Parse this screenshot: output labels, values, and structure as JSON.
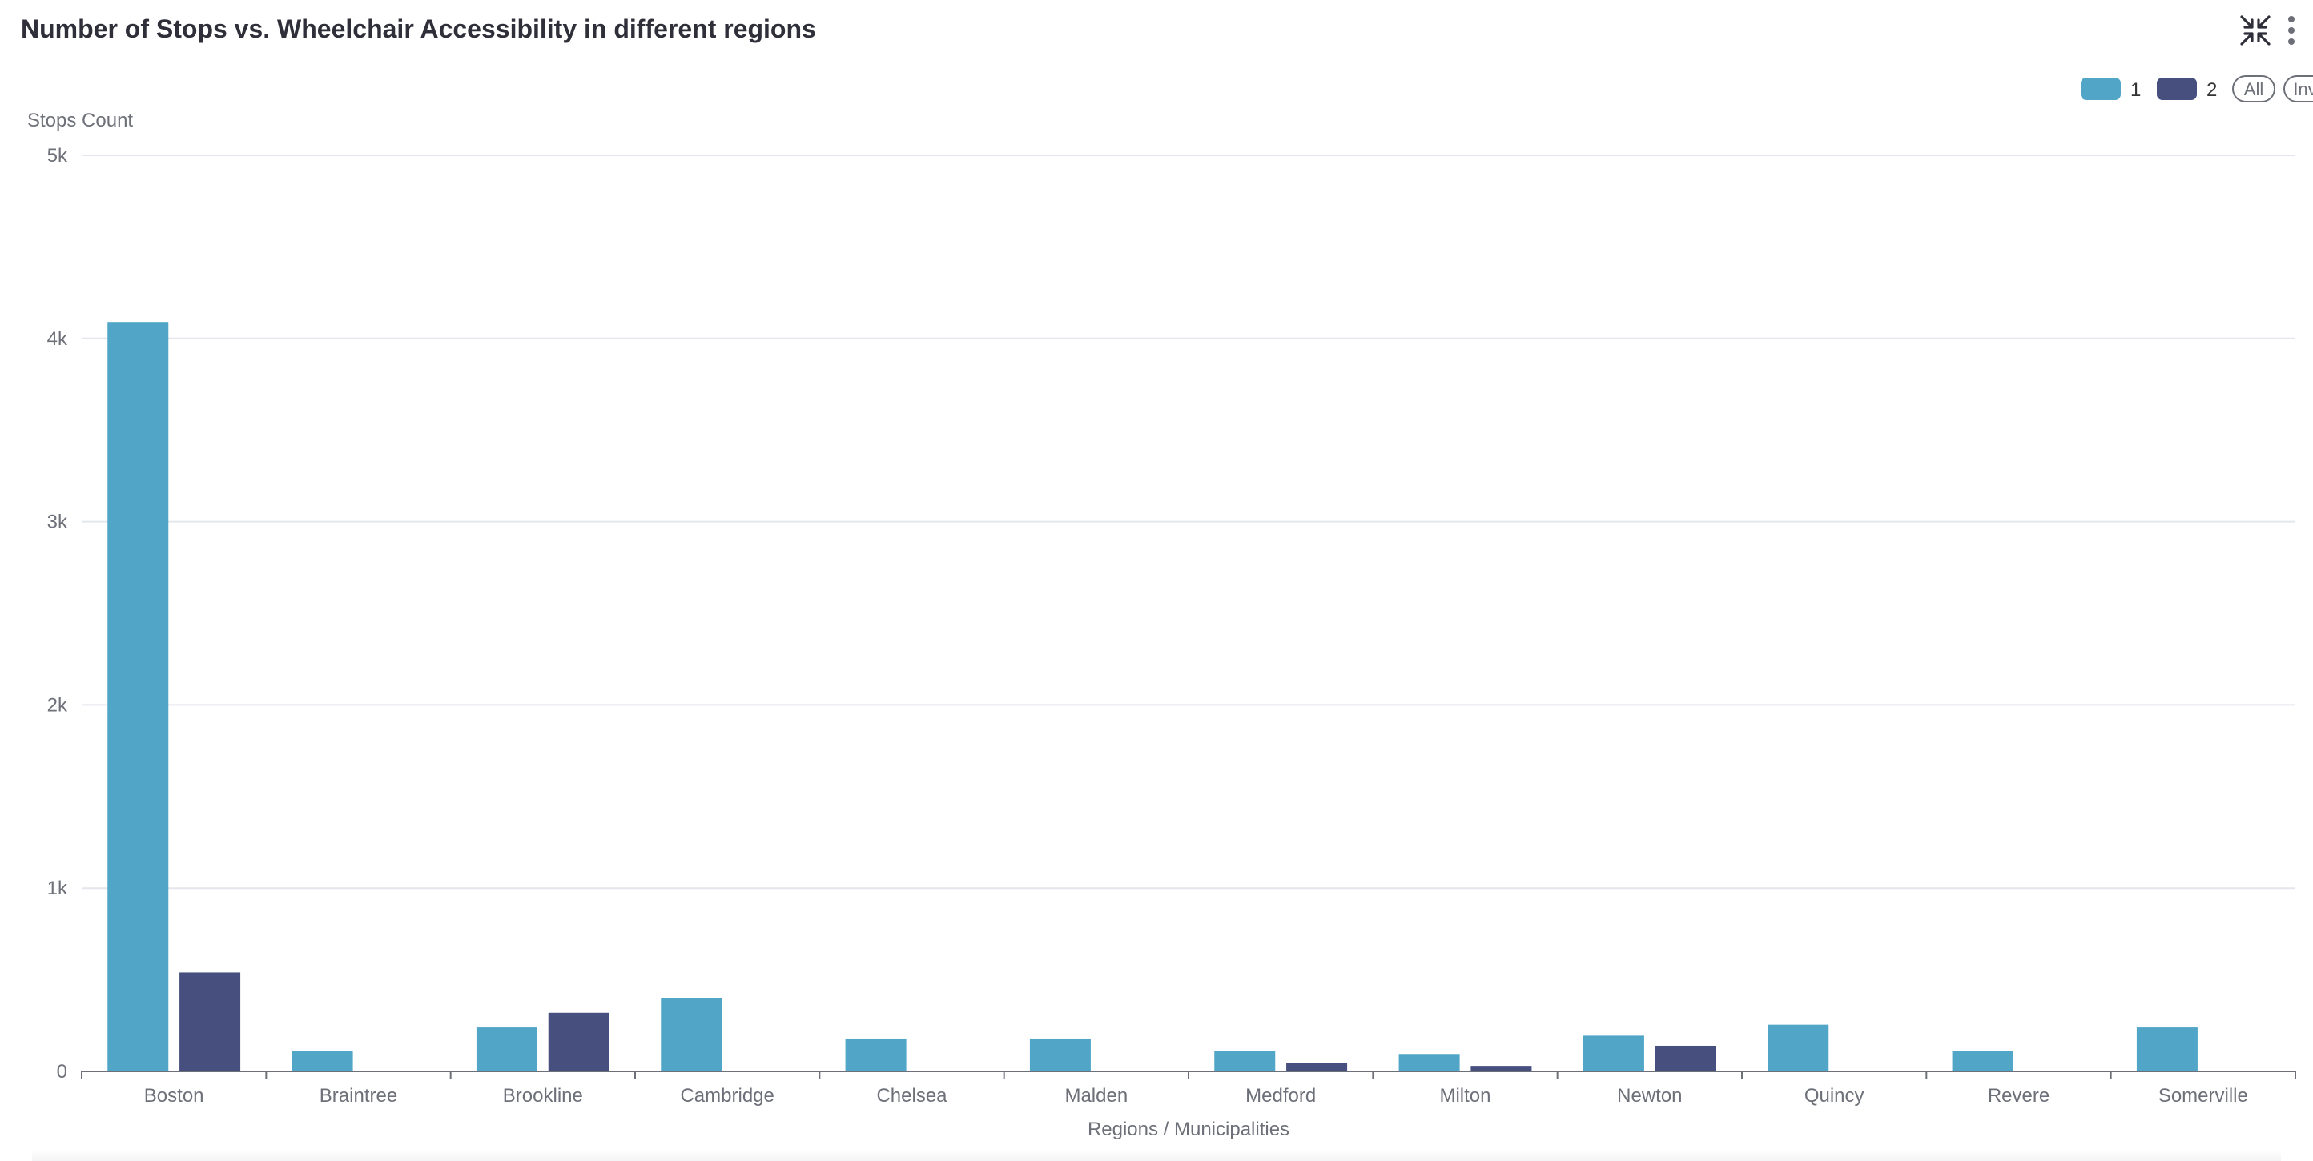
{
  "header": {
    "title": "Number of Stops vs. Wheelchair Accessibility in different regions",
    "icons": [
      "collapse-icon",
      "more-vertical-icon"
    ]
  },
  "legend": {
    "controls": [
      "All",
      "Inv"
    ]
  },
  "colors": {
    "series_1": "#51a5c7",
    "series_2": "#474f7e",
    "grid": "#e3e6ec",
    "axis": "#6e7079",
    "text": "#6e7079"
  },
  "chart_data": {
    "type": "bar",
    "title": "Number of Stops vs. Wheelchair Accessibility in different regions",
    "xlabel": "Regions / Municipalities",
    "ylabel": "Stops Count",
    "ylim": [
      0,
      5000
    ],
    "yticks": [
      0,
      1000,
      2000,
      3000,
      4000,
      5000
    ],
    "ytick_labels": [
      "0",
      "1k",
      "2k",
      "3k",
      "4k",
      "5k"
    ],
    "grid": true,
    "legend_position": "top-right",
    "categories": [
      "Boston",
      "Braintree",
      "Brookline",
      "Cambridge",
      "Chelsea",
      "Malden",
      "Medford",
      "Milton",
      "Newton",
      "Quincy",
      "Revere",
      "Somerville"
    ],
    "series": [
      {
        "name": "1",
        "values": [
          4090,
          110,
          240,
          400,
          175,
          175,
          110,
          95,
          195,
          255,
          110,
          240
        ]
      },
      {
        "name": "2",
        "values": [
          540,
          0,
          320,
          0,
          0,
          0,
          45,
          30,
          140,
          0,
          0,
          0
        ]
      }
    ]
  }
}
